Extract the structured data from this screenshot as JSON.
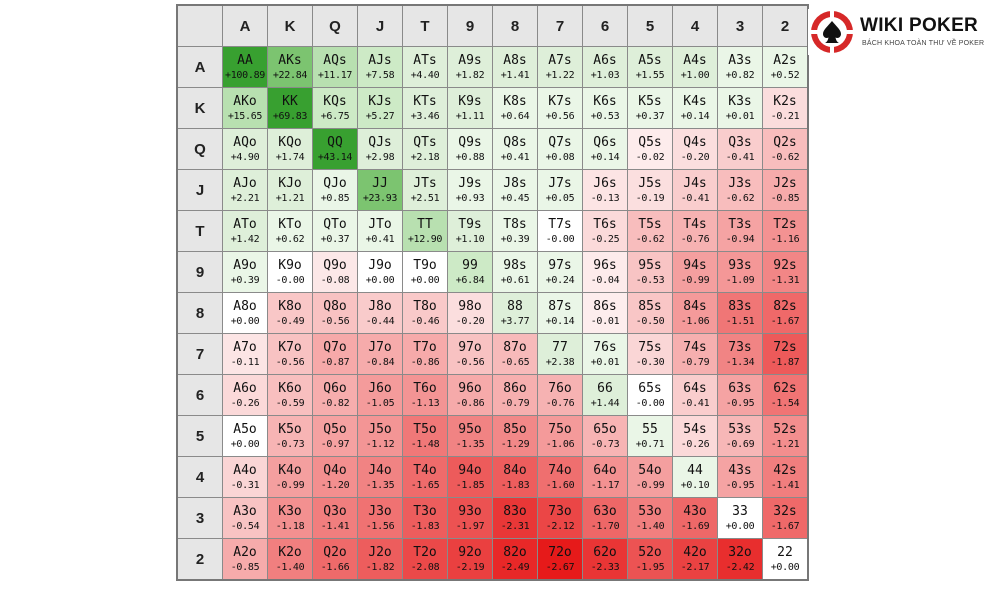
{
  "chart_data": {
    "type": "heatmap",
    "columns": [
      "A",
      "K",
      "Q",
      "J",
      "T",
      "9",
      "8",
      "7",
      "6",
      "5",
      "4",
      "3",
      "2"
    ],
    "rows": [
      "A",
      "K",
      "Q",
      "J",
      "T",
      "9",
      "8",
      "7",
      "6",
      "5",
      "4",
      "3",
      "2"
    ],
    "hands": [
      [
        "AA",
        "AKs",
        "AQs",
        "AJs",
        "ATs",
        "A9s",
        "A8s",
        "A7s",
        "A6s",
        "A5s",
        "A4s",
        "A3s",
        "A2s"
      ],
      [
        "AKo",
        "KK",
        "KQs",
        "KJs",
        "KTs",
        "K9s",
        "K8s",
        "K7s",
        "K6s",
        "K5s",
        "K4s",
        "K3s",
        "K2s"
      ],
      [
        "AQo",
        "KQo",
        "QQ",
        "QJs",
        "QTs",
        "Q9s",
        "Q8s",
        "Q7s",
        "Q6s",
        "Q5s",
        "Q4s",
        "Q3s",
        "Q2s"
      ],
      [
        "AJo",
        "KJo",
        "QJo",
        "JJ",
        "JTs",
        "J9s",
        "J8s",
        "J7s",
        "J6s",
        "J5s",
        "J4s",
        "J3s",
        "J2s"
      ],
      [
        "ATo",
        "KTo",
        "QTo",
        "JTo",
        "TT",
        "T9s",
        "T8s",
        "T7s",
        "T6s",
        "T5s",
        "T4s",
        "T3s",
        "T2s"
      ],
      [
        "A9o",
        "K9o",
        "Q9o",
        "J9o",
        "T9o",
        "99",
        "98s",
        "97s",
        "96s",
        "95s",
        "94s",
        "93s",
        "92s"
      ],
      [
        "A8o",
        "K8o",
        "Q8o",
        "J8o",
        "T8o",
        "98o",
        "88",
        "87s",
        "86s",
        "85s",
        "84s",
        "83s",
        "82s"
      ],
      [
        "A7o",
        "K7o",
        "Q7o",
        "J7o",
        "T7o",
        "97o",
        "87o",
        "77",
        "76s",
        "75s",
        "74s",
        "73s",
        "72s"
      ],
      [
        "A6o",
        "K6o",
        "Q6o",
        "J6o",
        "T6o",
        "96o",
        "86o",
        "76o",
        "66",
        "65s",
        "64s",
        "63s",
        "62s"
      ],
      [
        "A5o",
        "K5o",
        "Q5o",
        "J5o",
        "T5o",
        "95o",
        "85o",
        "75o",
        "65o",
        "55",
        "54s",
        "53s",
        "52s"
      ],
      [
        "A4o",
        "K4o",
        "Q4o",
        "J4o",
        "T4o",
        "94o",
        "84o",
        "74o",
        "64o",
        "54o",
        "44",
        "43s",
        "42s"
      ],
      [
        "A3o",
        "K3o",
        "Q3o",
        "J3o",
        "T3o",
        "93o",
        "83o",
        "73o",
        "63o",
        "53o",
        "43o",
        "33",
        "32s"
      ],
      [
        "A2o",
        "K2o",
        "Q2o",
        "J2o",
        "T2o",
        "92o",
        "82o",
        "72o",
        "62o",
        "52o",
        "42o",
        "32o",
        "22"
      ]
    ],
    "values": [
      [
        100.89,
        22.84,
        11.17,
        7.58,
        4.4,
        1.82,
        1.41,
        1.22,
        1.03,
        1.55,
        1.0,
        0.82,
        0.52
      ],
      [
        15.65,
        69.83,
        6.75,
        5.27,
        3.46,
        1.11,
        0.64,
        0.56,
        0.53,
        0.37,
        0.14,
        0.01,
        -0.21
      ],
      [
        4.9,
        1.74,
        43.14,
        2.98,
        2.18,
        0.88,
        0.41,
        0.08,
        0.14,
        -0.02,
        -0.2,
        -0.41,
        -0.62
      ],
      [
        2.21,
        1.21,
        0.85,
        23.93,
        2.51,
        0.93,
        0.45,
        0.05,
        -0.13,
        -0.19,
        -0.41,
        -0.62,
        -0.85
      ],
      [
        1.42,
        0.62,
        0.37,
        0.41,
        12.9,
        1.1,
        0.39,
        -0.0,
        -0.25,
        -0.62,
        -0.76,
        -0.94,
        -1.16
      ],
      [
        0.39,
        -0.0,
        -0.08,
        0.0,
        0.0,
        6.84,
        0.61,
        0.24,
        -0.04,
        -0.53,
        -0.99,
        -1.09,
        -1.31
      ],
      [
        0.0,
        -0.49,
        -0.56,
        -0.44,
        -0.46,
        -0.2,
        3.77,
        0.14,
        -0.01,
        -0.5,
        -1.06,
        -1.51,
        -1.67
      ],
      [
        -0.11,
        -0.56,
        -0.87,
        -0.84,
        -0.86,
        -0.56,
        -0.65,
        2.38,
        0.01,
        -0.3,
        -0.79,
        -1.34,
        -1.87
      ],
      [
        -0.26,
        -0.59,
        -0.82,
        -1.05,
        -1.13,
        -0.86,
        -0.79,
        -0.76,
        1.44,
        -0.0,
        -0.41,
        -0.95,
        -1.54
      ],
      [
        0.0,
        -0.73,
        -0.97,
        -1.12,
        -1.48,
        -1.35,
        -1.29,
        -1.06,
        -0.73,
        0.71,
        -0.26,
        -0.69,
        -1.21
      ],
      [
        -0.31,
        -0.99,
        -1.2,
        -1.35,
        -1.65,
        -1.85,
        -1.83,
        -1.6,
        -1.17,
        -0.99,
        0.1,
        -0.95,
        -1.41
      ],
      [
        -0.54,
        -1.18,
        -1.41,
        -1.56,
        -1.83,
        -1.97,
        -2.31,
        -2.12,
        -1.7,
        -1.4,
        -1.69,
        0.0,
        -1.67
      ],
      [
        -0.85,
        -1.4,
        -1.66,
        -1.82,
        -2.08,
        -2.19,
        -2.49,
        -2.67,
        -2.33,
        -1.95,
        -2.17,
        -2.42,
        0.0
      ]
    ],
    "value_labels": [
      [
        "+100.89",
        "+22.84",
        "+11.17",
        "+7.58",
        "+4.40",
        "+1.82",
        "+1.41",
        "+1.22",
        "+1.03",
        "+1.55",
        "+1.00",
        "+0.82",
        "+0.52"
      ],
      [
        "+15.65",
        "+69.83",
        "+6.75",
        "+5.27",
        "+3.46",
        "+1.11",
        "+0.64",
        "+0.56",
        "+0.53",
        "+0.37",
        "+0.14",
        "+0.01",
        "-0.21"
      ],
      [
        "+4.90",
        "+1.74",
        "+43.14",
        "+2.98",
        "+2.18",
        "+0.88",
        "+0.41",
        "+0.08",
        "+0.14",
        "-0.02",
        "-0.20",
        "-0.41",
        "-0.62"
      ],
      [
        "+2.21",
        "+1.21",
        "+0.85",
        "+23.93",
        "+2.51",
        "+0.93",
        "+0.45",
        "+0.05",
        "-0.13",
        "-0.19",
        "-0.41",
        "-0.62",
        "-0.85"
      ],
      [
        "+1.42",
        "+0.62",
        "+0.37",
        "+0.41",
        "+12.90",
        "+1.10",
        "+0.39",
        "-0.00",
        "-0.25",
        "-0.62",
        "-0.76",
        "-0.94",
        "-1.16"
      ],
      [
        "+0.39",
        "-0.00",
        "-0.08",
        "+0.00",
        "+0.00",
        "+6.84",
        "+0.61",
        "+0.24",
        "-0.04",
        "-0.53",
        "-0.99",
        "-1.09",
        "-1.31"
      ],
      [
        "+0.00",
        "-0.49",
        "-0.56",
        "-0.44",
        "-0.46",
        "-0.20",
        "+3.77",
        "+0.14",
        "-0.01",
        "-0.50",
        "-1.06",
        "-1.51",
        "-1.67"
      ],
      [
        "-0.11",
        "-0.56",
        "-0.87",
        "-0.84",
        "-0.86",
        "-0.56",
        "-0.65",
        "+2.38",
        "+0.01",
        "-0.30",
        "-0.79",
        "-1.34",
        "-1.87"
      ],
      [
        "-0.26",
        "-0.59",
        "-0.82",
        "-1.05",
        "-1.13",
        "-0.86",
        "-0.79",
        "-0.76",
        "+1.44",
        "-0.00",
        "-0.41",
        "-0.95",
        "-1.54"
      ],
      [
        "+0.00",
        "-0.73",
        "-0.97",
        "-1.12",
        "-1.48",
        "-1.35",
        "-1.29",
        "-1.06",
        "-0.73",
        "+0.71",
        "-0.26",
        "-0.69",
        "-1.21"
      ],
      [
        "-0.31",
        "-0.99",
        "-1.20",
        "-1.35",
        "-1.65",
        "-1.85",
        "-1.83",
        "-1.60",
        "-1.17",
        "-0.99",
        "+0.10",
        "-0.95",
        "-1.41"
      ],
      [
        "-0.54",
        "-1.18",
        "-1.41",
        "-1.56",
        "-1.83",
        "-1.97",
        "-2.31",
        "-2.12",
        "-1.70",
        "-1.40",
        "-1.69",
        "+0.00",
        "-1.67"
      ],
      [
        "-0.85",
        "-1.40",
        "-1.66",
        "-1.82",
        "-2.08",
        "-2.19",
        "-2.49",
        "-2.67",
        "-2.33",
        "-1.95",
        "-2.17",
        "-2.42",
        "+0.00"
      ]
    ],
    "colors": {
      "header_bg": "#e6e6e6",
      "positive_strong": "#38a030",
      "positive_light": "#e6f7e2",
      "neutral": "#ffffff",
      "negative_light": "#fde4e4",
      "negative_strong": "#e61a1a"
    }
  },
  "branding": {
    "title": "WIKI POKER",
    "subtitle": "BÁCH KHOA TOÀN THƯ VỀ POKER",
    "icon": "poker-chip-spade-icon",
    "accent": "#d62828"
  }
}
